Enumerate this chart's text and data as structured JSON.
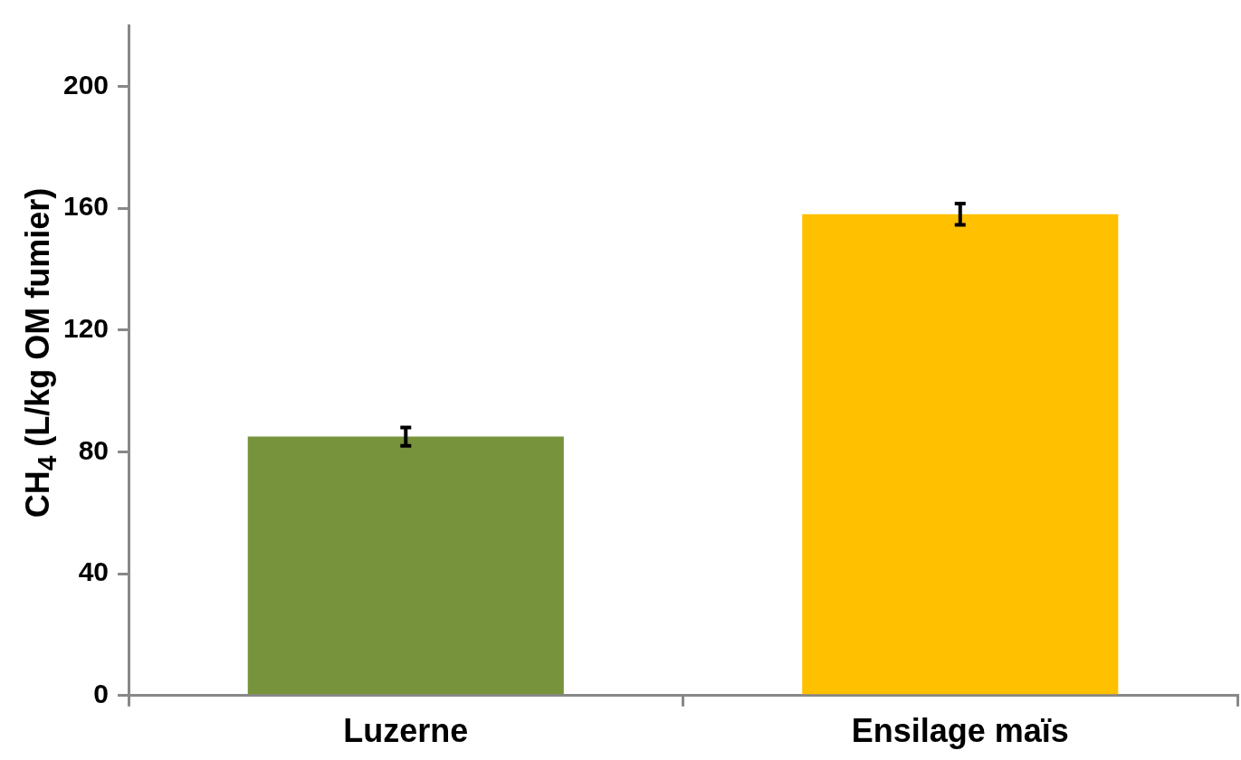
{
  "chart_data": {
    "type": "bar",
    "ylabel": "CH$_{4}$ (L/kg OM fumier)",
    "categories": [
      "Luzerne",
      "Ensilage maïs"
    ],
    "values": [
      85,
      158
    ],
    "colors": [
      "#77933c",
      "#ffc000"
    ],
    "errors": [
      3,
      3.5
    ],
    "ylim": [
      0,
      220
    ],
    "yticks": [
      0,
      40,
      80,
      120,
      160,
      200
    ],
    "grid": false,
    "legend": false
  }
}
